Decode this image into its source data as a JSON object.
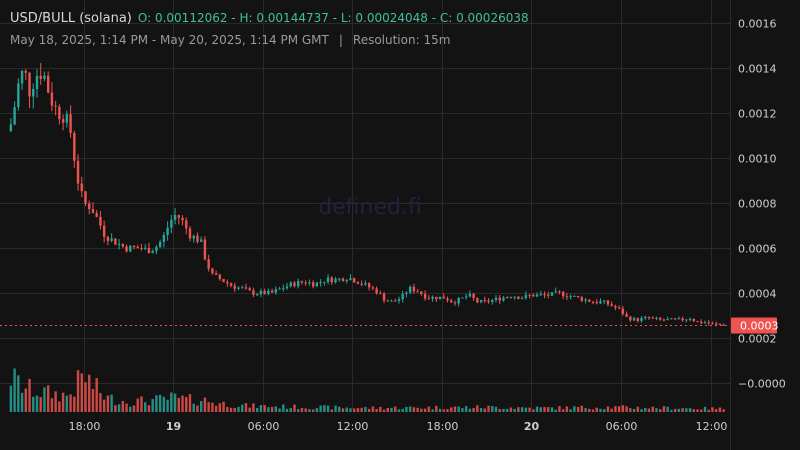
{
  "header": {
    "symbol": "USD/BULL (solana)",
    "ohlc": "O: 0.00112062 - H: 0.00144737 - L: 0.00024048 - C: 0.00026038",
    "range": "May 18, 2025, 1:14 PM - May 20, 2025, 1:14 PM GMT",
    "separator": "|",
    "resolution": "Resolution: 15m"
  },
  "watermark": "defined.fi",
  "colors": {
    "up": "#26a69a",
    "down": "#ef5350",
    "background": "#131313",
    "grid": "#2a2a2a",
    "last_price": "#ef5350"
  },
  "chart_data": {
    "type": "candlestick",
    "yaxis": {
      "ticks": [
        "0.0016",
        "0.0014",
        "0.0012",
        "0.0010",
        "0.0008",
        "0.0006",
        "0.0004",
        "0.0002",
        "−0.0000"
      ],
      "tick_values": [
        0.0016,
        0.0014,
        0.0012,
        0.001,
        0.0008,
        0.0006,
        0.0004,
        0.0002,
        0
      ],
      "range": [
        -2e-05,
        0.00165
      ]
    },
    "xaxis": {
      "ticks": [
        {
          "label": "18:00",
          "hour": 5,
          "bold": false
        },
        {
          "label": "19",
          "hour": 11,
          "bold": true
        },
        {
          "label": "06:00",
          "hour": 17,
          "bold": false
        },
        {
          "label": "12:00",
          "hour": 23,
          "bold": false
        },
        {
          "label": "18:00",
          "hour": 29,
          "bold": false
        },
        {
          "label": "20",
          "hour": 35,
          "bold": true
        },
        {
          "label": "06:00",
          "hour": 41,
          "bold": false
        },
        {
          "label": "12:00",
          "hour": 47,
          "bold": false
        }
      ],
      "range_hours": [
        0,
        48.1
      ]
    },
    "last_price": {
      "value": 0.00026,
      "label": "0.0003"
    },
    "price_path": [
      [
        0,
        0.00112
      ],
      [
        0.25,
        0.00118
      ],
      [
        0.6,
        0.00132
      ],
      [
        1.0,
        0.0014
      ],
      [
        1.4,
        0.00129
      ],
      [
        1.8,
        0.00137
      ],
      [
        2.3,
        0.00138
      ],
      [
        2.8,
        0.00126
      ],
      [
        3.3,
        0.0012
      ],
      [
        3.8,
        0.00118
      ],
      [
        4.2,
        0.0011
      ],
      [
        4.5,
        0.00093
      ],
      [
        5.0,
        0.0008
      ],
      [
        5.5,
        0.00078
      ],
      [
        6.0,
        0.00072
      ],
      [
        6.4,
        0.00066
      ],
      [
        6.8,
        0.00064
      ],
      [
        7.3,
        0.00062
      ],
      [
        7.8,
        0.0006
      ],
      [
        8.3,
        0.0006
      ],
      [
        8.8,
        0.0006
      ],
      [
        9.3,
        0.00059
      ],
      [
        9.8,
        0.0006
      ],
      [
        10.3,
        0.00064
      ],
      [
        10.8,
        0.00072
      ],
      [
        11.2,
        0.00075
      ],
      [
        11.6,
        0.00072
      ],
      [
        12.1,
        0.00066
      ],
      [
        12.6,
        0.00064
      ],
      [
        12.9,
        0.00062
      ],
      [
        13.2,
        0.00054
      ],
      [
        13.6,
        0.00048
      ],
      [
        14.2,
        0.00046
      ],
      [
        15.0,
        0.00043
      ],
      [
        15.6,
        0.00042
      ],
      [
        16.3,
        0.0004
      ],
      [
        17.0,
        0.0004
      ],
      [
        17.6,
        0.0004
      ],
      [
        18.2,
        0.00042
      ],
      [
        19.0,
        0.00044
      ],
      [
        19.8,
        0.00045
      ],
      [
        20.5,
        0.00044
      ],
      [
        21.2,
        0.00046
      ],
      [
        22.0,
        0.00046
      ],
      [
        22.7,
        0.00047
      ],
      [
        23.4,
        0.00045
      ],
      [
        24.0,
        0.00043
      ],
      [
        24.6,
        0.00041
      ],
      [
        25.2,
        0.00037
      ],
      [
        25.7,
        0.00036
      ],
      [
        26.3,
        0.00038
      ],
      [
        26.8,
        0.00042
      ],
      [
        27.4,
        0.00041
      ],
      [
        28.0,
        0.00038
      ],
      [
        28.6,
        0.00038
      ],
      [
        29.2,
        0.00038
      ],
      [
        29.7,
        0.00036
      ],
      [
        30.2,
        0.00037
      ],
      [
        30.8,
        0.00039
      ],
      [
        31.4,
        0.00036
      ],
      [
        31.9,
        0.00036
      ],
      [
        32.5,
        0.00037
      ],
      [
        33.1,
        0.00038
      ],
      [
        33.7,
        0.00039
      ],
      [
        34.3,
        0.00038
      ],
      [
        35.0,
        0.00039
      ],
      [
        35.6,
        0.00039
      ],
      [
        36.2,
        0.00039
      ],
      [
        36.8,
        0.0004
      ],
      [
        37.4,
        0.00039
      ],
      [
        38.0,
        0.00038
      ],
      [
        38.6,
        0.00037
      ],
      [
        39.2,
        0.00036
      ],
      [
        39.8,
        0.00036
      ],
      [
        40.5,
        0.00034
      ],
      [
        41.0,
        0.00032
      ],
      [
        41.4,
        0.00029
      ],
      [
        42.0,
        0.00028
      ],
      [
        42.8,
        0.00029
      ],
      [
        43.6,
        0.00028
      ],
      [
        44.4,
        0.00028
      ],
      [
        45.0,
        0.00028
      ],
      [
        45.6,
        0.00029
      ],
      [
        46.1,
        0.00027
      ],
      [
        46.6,
        0.00027
      ],
      [
        47.2,
        0.00026
      ],
      [
        48.0,
        0.00026
      ]
    ],
    "volume_path": [
      [
        0,
        0.9
      ],
      [
        1.0,
        0.6
      ],
      [
        2.0,
        0.5
      ],
      [
        3.0,
        0.45
      ],
      [
        4.0,
        0.4
      ],
      [
        5.0,
        0.9
      ],
      [
        5.5,
        0.7
      ],
      [
        6.5,
        0.35
      ],
      [
        8.0,
        0.25
      ],
      [
        10.0,
        0.3
      ],
      [
        11.0,
        0.35
      ],
      [
        12.0,
        0.3
      ],
      [
        13.0,
        0.3
      ],
      [
        14.0,
        0.22
      ],
      [
        16.0,
        0.15
      ],
      [
        20.0,
        0.12
      ],
      [
        24.0,
        0.1
      ],
      [
        28.0,
        0.11
      ],
      [
        32.0,
        0.12
      ],
      [
        36.0,
        0.1
      ],
      [
        40.0,
        0.12
      ],
      [
        44.0,
        0.1
      ],
      [
        48.0,
        0.08
      ]
    ]
  }
}
